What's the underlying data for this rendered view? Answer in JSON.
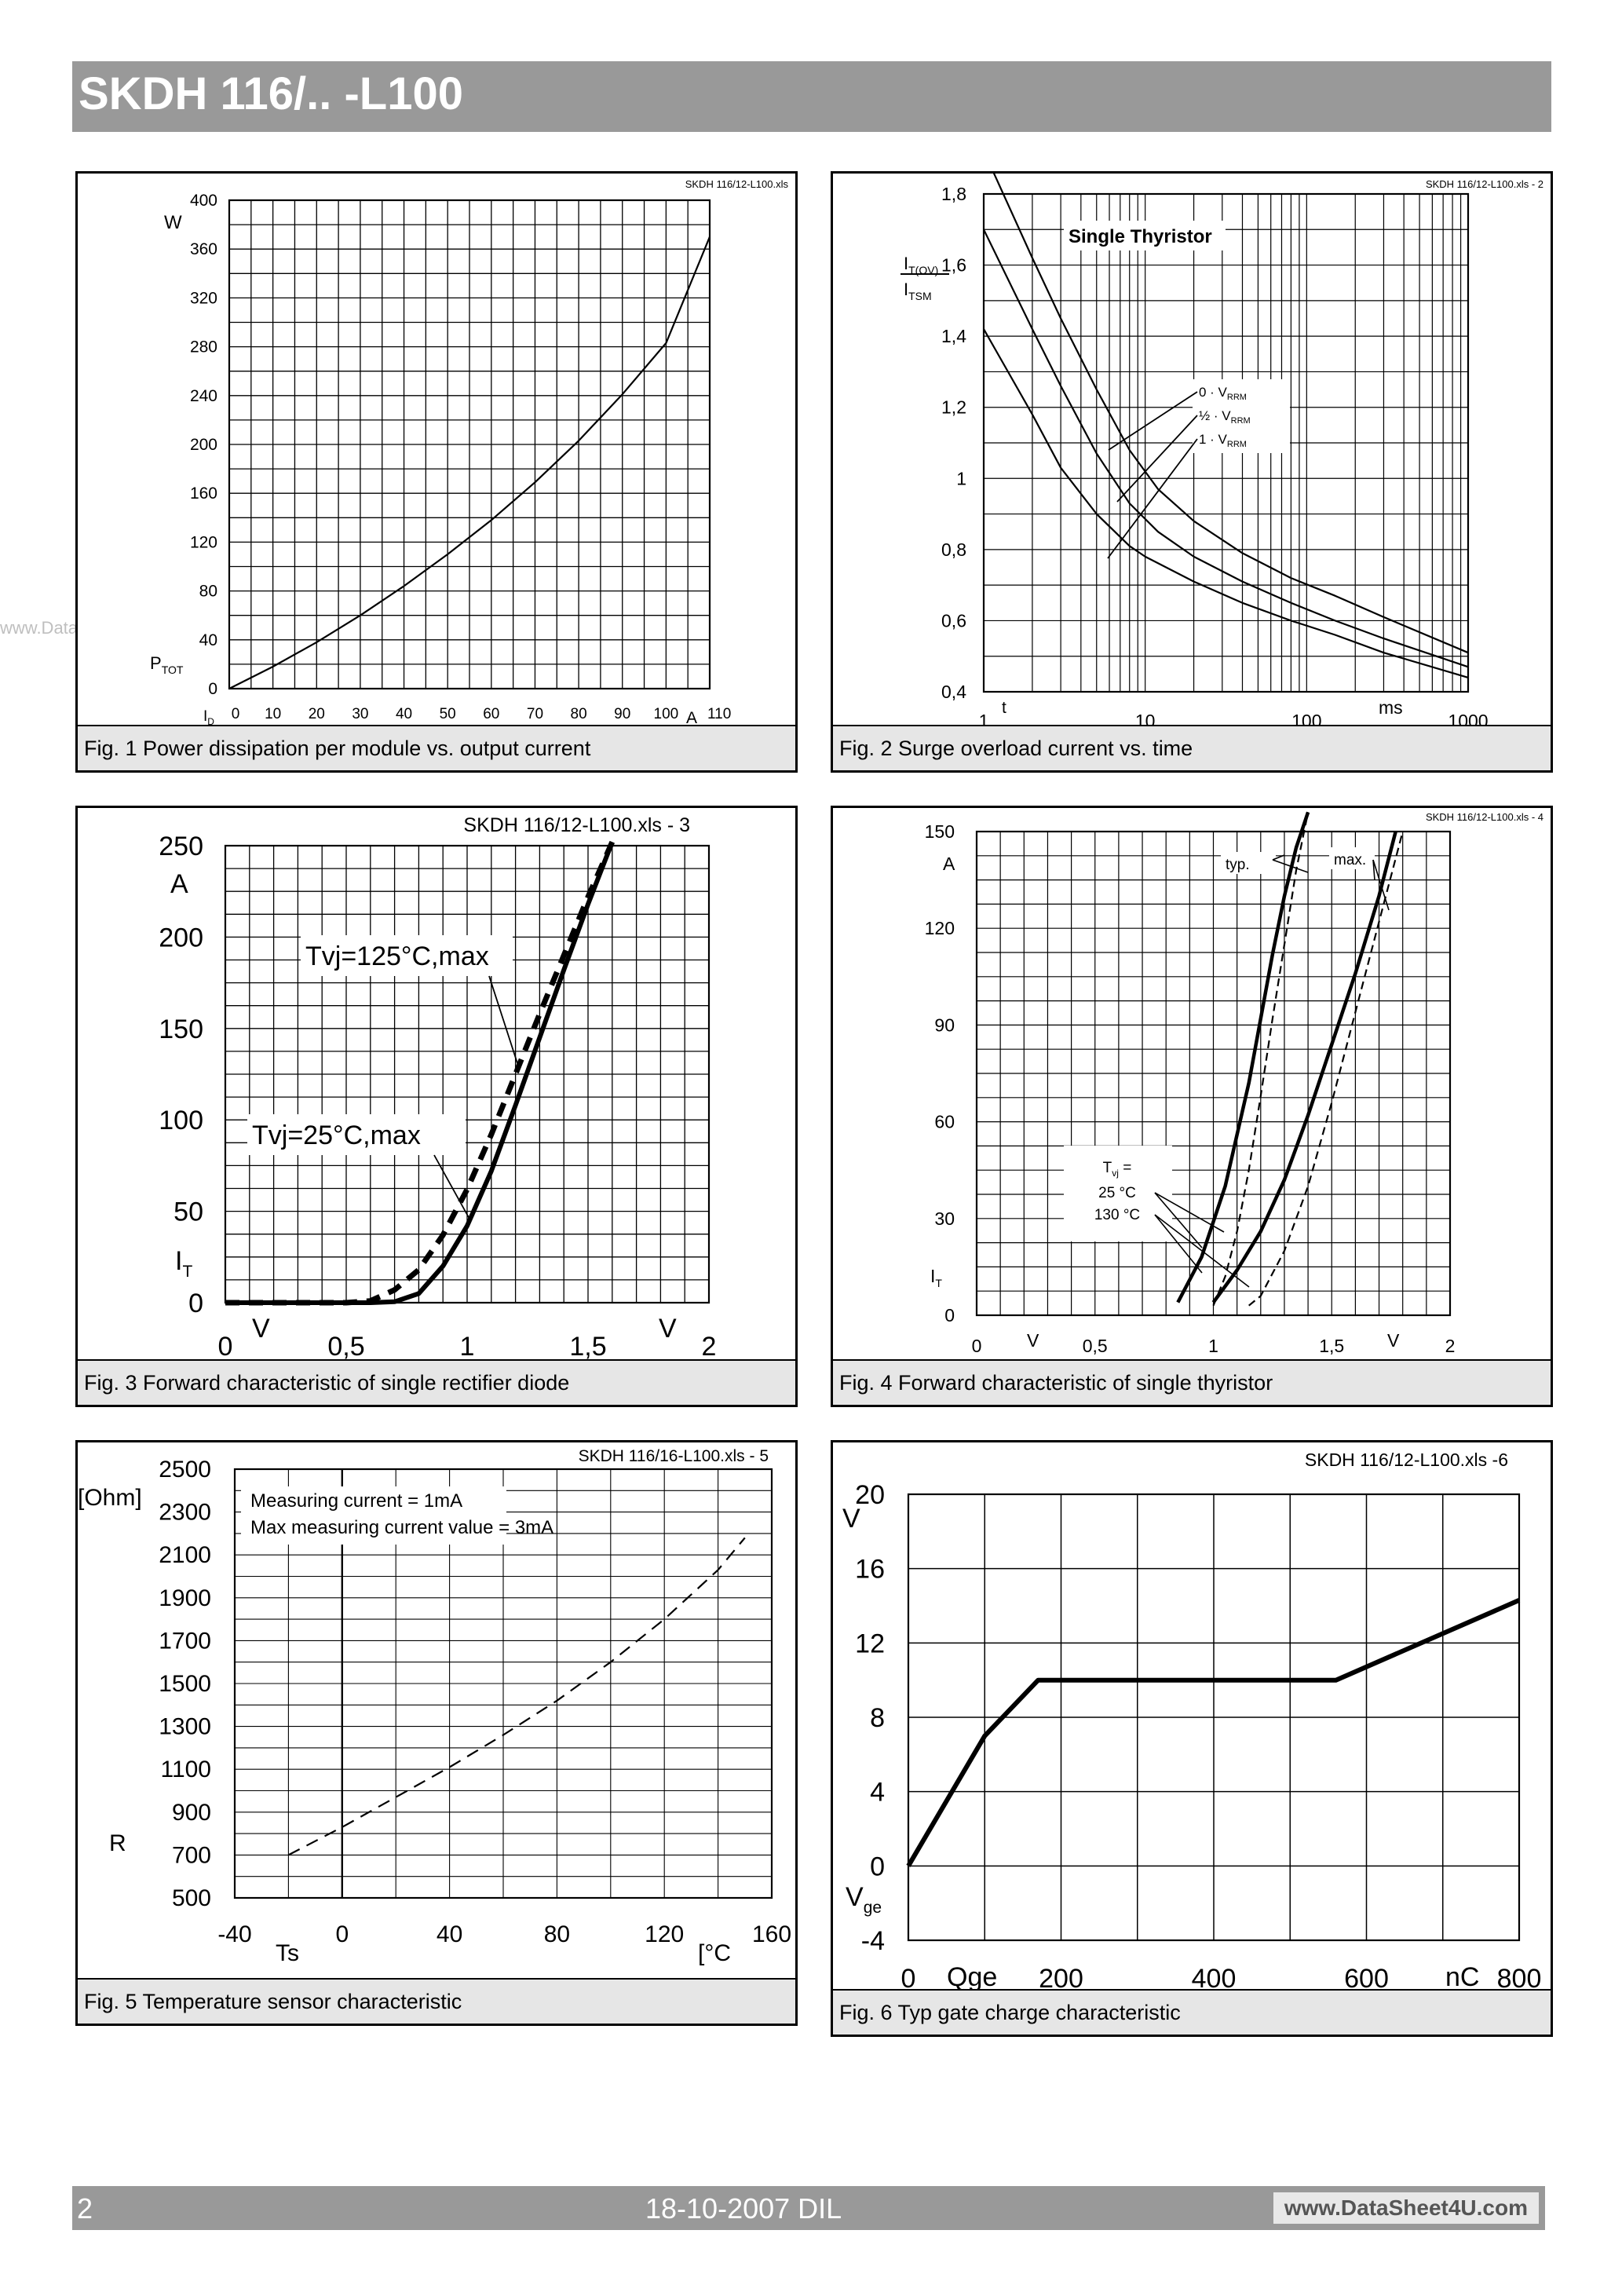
{
  "header": {
    "title": "SKDH 116/.. -L100"
  },
  "watermark": "www.DataSheet4U.com",
  "footer": {
    "page_number": "2",
    "date": "18-10-2007  DIL",
    "website": "www.DataSheet4U.com"
  },
  "figures": [
    {
      "id": "fig1",
      "file_label": "SKDH 116/12-L100.xls",
      "caption": "Fig. 1 Power dissipation per module vs. output current",
      "x_unit": "A",
      "x_symbol": "I",
      "x_symbol_sub": "D",
      "y_unit": "W",
      "y_symbol": "P",
      "y_symbol_sub": "TOT",
      "x_ticks": [
        "0",
        "10",
        "20",
        "30",
        "40",
        "50",
        "60",
        "70",
        "80",
        "90",
        "100",
        "110"
      ],
      "y_ticks": [
        "0",
        "40",
        "80",
        "120",
        "160",
        "200",
        "240",
        "280",
        "320",
        "360",
        "400"
      ]
    },
    {
      "id": "fig2",
      "file_label": "SKDH 116/12-L100.xls - 2",
      "caption": "Fig. 2 Surge overload current vs. time",
      "inset_title": "Single Thyristor",
      "y_symbol_num": "I",
      "y_symbol_num_sub": "T(OV)",
      "y_symbol_den": "I",
      "y_symbol_den_sub": "TSM",
      "x_symbol": "t",
      "x_unit": "ms",
      "x_ticks": [
        "1",
        "10",
        "100",
        "1000"
      ],
      "y_ticks": [
        "0,4",
        "0,6",
        "0,8",
        "1",
        "1,2",
        "1,4",
        "1,6",
        "1,8"
      ],
      "legend": [
        {
          "prefix": "0 · V",
          "sub": "RRM"
        },
        {
          "prefix": "½ · V",
          "sub": "RRM"
        },
        {
          "prefix": "1 · V",
          "sub": "RRM"
        }
      ]
    },
    {
      "id": "fig3",
      "file_label": "SKDH 116/12-L100.xls - 3",
      "caption": "Fig. 3 Forward characteristic of single rectifier diode",
      "x_unit": "V",
      "x_unit2": "V",
      "y_unit": "A",
      "y_symbol": "I",
      "y_symbol_sub": "T",
      "x_ticks": [
        "0",
        "0,5",
        "1",
        "1,5",
        "2"
      ],
      "y_ticks": [
        "0",
        "50",
        "100",
        "150",
        "200",
        "250"
      ],
      "label_hot": "Tvj=125°C,max",
      "label_cold": "Tvj=25°C,max"
    },
    {
      "id": "fig4",
      "file_label": "SKDH 116/12-L100.xls - 4",
      "caption": "Fig. 4 Forward characteristic of single thyristor",
      "x_unit": "V",
      "x_unit2": "V",
      "y_unit": "A",
      "y_symbol": "I",
      "y_symbol_sub": "T",
      "x_ticks": [
        "0",
        "0,5",
        "1",
        "1,5",
        "2"
      ],
      "y_ticks": [
        "0",
        "30",
        "60",
        "90",
        "120",
        "150"
      ],
      "label_typ": "typ.",
      "label_max": "max.",
      "legend_title": "T",
      "legend_title_sub": "vj",
      "legend_title_suffix": " =",
      "legend_items": [
        "25 °C",
        "130 °C"
      ]
    },
    {
      "id": "fig5",
      "file_label": "SKDH 116/16-L100.xls - 5",
      "caption": "Fig. 5 Temperature sensor characteristic",
      "y_unit": "[Ohm]",
      "y_symbol": "R",
      "x_symbol": "Ts",
      "x_unit": "[°C",
      "x_ticks": [
        "-40",
        "0",
        "40",
        "80",
        "120",
        "160"
      ],
      "y_ticks": [
        "500",
        "700",
        "900",
        "1100",
        "1300",
        "1500",
        "1700",
        "1900",
        "2100",
        "2300",
        "2500"
      ],
      "note_lines": [
        "Measuring current = 1mA",
        "Max measuring current value = 3mA"
      ]
    },
    {
      "id": "fig6",
      "file_label": "SKDH 116/12-L100.xls -6",
      "caption": "Fig. 6 Typ gate charge characteristic",
      "y_unit": "V",
      "y_symbol": "V",
      "y_symbol_sub": "ge",
      "x_symbol": "Qge",
      "x_unit": "nC",
      "x_ticks": [
        "0",
        "200",
        "400",
        "600",
        "800"
      ],
      "y_ticks": [
        "-4",
        "0",
        "4",
        "8",
        "12",
        "16",
        "20"
      ]
    }
  ],
  "chart_data": [
    {
      "type": "line",
      "title": "Fig. 1 Power dissipation per module vs. output current",
      "xlabel": "ID (A)",
      "ylabel": "PTOT (W)",
      "xlim": [
        0,
        110
      ],
      "ylim": [
        0,
        400
      ],
      "grid": true,
      "series": [
        {
          "x": [
            0,
            10,
            20,
            30,
            40,
            50,
            60,
            70,
            80,
            90,
            100,
            110
          ],
          "y": [
            0,
            18,
            38,
            60,
            84,
            110,
            138,
            169,
            203,
            241,
            283,
            370
          ]
        }
      ]
    },
    {
      "type": "line",
      "title": "Fig. 2 Surge overload current vs. time",
      "xlabel": "t (ms)",
      "ylabel": "IT(OV)/ITSM",
      "x_scale": "log",
      "xlim": [
        1,
        1000
      ],
      "ylim": [
        0.4,
        1.8
      ],
      "grid": true,
      "series": [
        {
          "name": "0 · VRRM",
          "x": [
            1.1,
            2,
            3,
            5,
            8,
            12,
            20,
            40,
            80,
            150,
            300,
            1000
          ],
          "y": [
            1.88,
            1.62,
            1.45,
            1.25,
            1.08,
            0.97,
            0.88,
            0.79,
            0.72,
            0.67,
            0.61,
            0.51
          ]
        },
        {
          "name": "½ · VRRM",
          "x": [
            1,
            2,
            3,
            5,
            8,
            12,
            20,
            40,
            80,
            150,
            300,
            1000
          ],
          "y": [
            1.7,
            1.42,
            1.26,
            1.07,
            0.93,
            0.85,
            0.78,
            0.71,
            0.65,
            0.6,
            0.55,
            0.47
          ]
        },
        {
          "name": "1 · VRRM",
          "x": [
            1,
            2,
            3,
            5,
            8,
            10,
            20,
            40,
            80,
            150,
            300,
            1000
          ],
          "y": [
            1.42,
            1.18,
            1.03,
            0.9,
            0.81,
            0.78,
            0.71,
            0.65,
            0.6,
            0.56,
            0.51,
            0.44
          ]
        }
      ]
    },
    {
      "type": "line",
      "title": "Fig. 3 Forward characteristic of single rectifier diode",
      "xlabel": "V",
      "ylabel": "IT (A)",
      "xlim": [
        0,
        2
      ],
      "ylim": [
        0,
        250
      ],
      "grid": true,
      "series": [
        {
          "name": "Tvj=125°C,max",
          "style": "dashed",
          "x": [
            0,
            0.4,
            0.5,
            0.6,
            0.7,
            0.8,
            0.9,
            1.0,
            1.1,
            1.2,
            1.3,
            1.4,
            1.5,
            1.6
          ],
          "y": [
            0,
            0,
            0,
            1,
            7,
            18,
            37,
            62,
            92,
            125,
            158,
            190,
            222,
            252
          ]
        },
        {
          "name": "Tvj=25°C,max",
          "style": "solid",
          "x": [
            0,
            0.5,
            0.6,
            0.7,
            0.8,
            0.9,
            1.0,
            1.1,
            1.2,
            1.3,
            1.4,
            1.5,
            1.6
          ],
          "y": [
            0,
            0,
            0,
            0.5,
            5,
            20,
            42,
            72,
            108,
            145,
            182,
            218,
            252
          ]
        }
      ]
    },
    {
      "type": "line",
      "title": "Fig. 4 Forward characteristic of single thyristor",
      "xlabel": "V",
      "ylabel": "IT (A)",
      "xlim": [
        0,
        2
      ],
      "ylim": [
        0,
        150
      ],
      "grid": true,
      "series": [
        {
          "name": "25 °C typ.",
          "style": "solid",
          "x": [
            0.85,
            0.95,
            1.05,
            1.15,
            1.25,
            1.3,
            1.35,
            1.4
          ],
          "y": [
            4,
            18,
            40,
            72,
            112,
            130,
            145,
            156
          ]
        },
        {
          "name": "25 °C max.",
          "style": "solid",
          "x": [
            1.0,
            1.1,
            1.2,
            1.3,
            1.4,
            1.5,
            1.6,
            1.7,
            1.77
          ],
          "y": [
            4,
            14,
            26,
            42,
            62,
            84,
            106,
            130,
            150
          ]
        },
        {
          "name": "130 °C typ.",
          "style": "dashed",
          "x": [
            1.0,
            1.05,
            1.1,
            1.15,
            1.2,
            1.25,
            1.3,
            1.35,
            1.4
          ],
          "y": [
            3,
            12,
            26,
            45,
            68,
            92,
            115,
            138,
            156
          ]
        },
        {
          "name": "130 °C max.",
          "style": "dashed",
          "x": [
            1.15,
            1.2,
            1.3,
            1.4,
            1.5,
            1.6,
            1.7,
            1.8
          ],
          "y": [
            3,
            6,
            20,
            40,
            66,
            94,
            122,
            150
          ]
        }
      ]
    },
    {
      "type": "line",
      "title": "Fig. 5 Temperature sensor characteristic",
      "xlabel": "Ts [°C",
      "ylabel": "R [Ohm]",
      "xlim": [
        -40,
        160
      ],
      "ylim": [
        500,
        2500
      ],
      "grid": true,
      "series": [
        {
          "style": "dashed",
          "x": [
            -20,
            0,
            20,
            40,
            60,
            80,
            100,
            120,
            140,
            150
          ],
          "y": [
            700,
            830,
            970,
            1110,
            1260,
            1420,
            1600,
            1800,
            2030,
            2180
          ]
        }
      ]
    },
    {
      "type": "line",
      "title": "Fig. 6 Typ gate charge characteristic",
      "xlabel": "Qge (nC)",
      "ylabel": "Vge (V)",
      "xlim": [
        0,
        800
      ],
      "ylim": [
        -4,
        20
      ],
      "grid": true,
      "series": [
        {
          "x": [
            0,
            100,
            170,
            560,
            800
          ],
          "y": [
            0,
            7,
            10,
            10,
            14.3
          ]
        }
      ]
    }
  ],
  "colors": {
    "bar": "#999999",
    "caption_bg": "#e6e6e6",
    "line": "#000000",
    "grid": "#000000"
  }
}
